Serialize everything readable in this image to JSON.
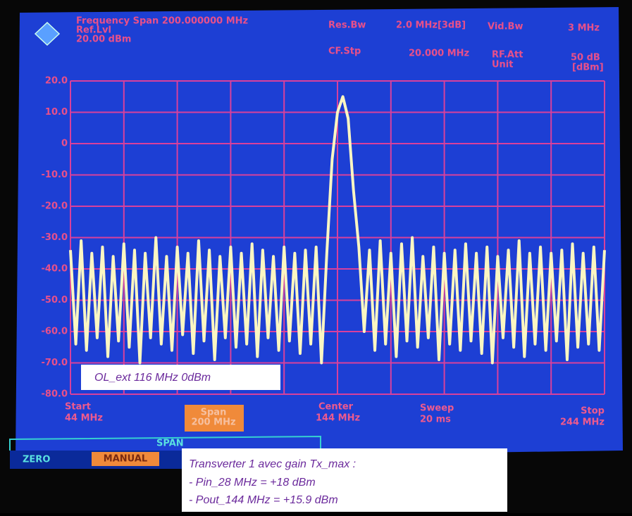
{
  "chart_data": {
    "type": "line",
    "title": "Frequency Span 200.000000 MHz",
    "screen": {
      "ref_lvl_label": "Ref.Lvl",
      "ref_lvl": "20.00 dBm",
      "res_bw_label": "Res.Bw",
      "res_bw": "2.0 MHz[3dB]",
      "vid_bw_label": "Vid.Bw",
      "vid_bw": "3 MHz",
      "cf_stp_label": "CF.Stp",
      "cf_stp": "20.000 MHz",
      "rf_att_label": "RF.Att",
      "rf_att": "50 dB",
      "unit_label": "Unit",
      "unit": "[dBm]",
      "start_label": "Start",
      "start": "44 MHz",
      "span_label": "Span",
      "span": "200 MHz",
      "center_label": "Center",
      "center": "144 MHz",
      "sweep_label": "Sweep",
      "sweep": "20 ms",
      "stop_label": "Stop",
      "stop": "244 MHz",
      "softkey_group": "SPAN",
      "softkey_zero": "ZERO",
      "softkey_manual": "MANUAL"
    },
    "annotations": {
      "ol_note": "OL_ext 116 MHz 0dBm",
      "transverter_title": "Transverter 1 avec gain Tx_max :",
      "pin": "- Pin_28 MHz = +18 dBm",
      "pout": "- Pout_144 MHz = +15.9 dBm"
    },
    "xlim": [
      44,
      244
    ],
    "xticks": [
      44,
      64,
      84,
      104,
      124,
      144,
      164,
      184,
      204,
      224,
      244
    ],
    "ylim": [
      -80,
      20
    ],
    "yticks": [
      {
        "value": 20,
        "label": "20.0"
      },
      {
        "value": 10,
        "label": "10.0"
      },
      0,
      {
        "value": -10,
        "label": "-10.0"
      },
      {
        "value": -20,
        "label": "-20.0"
      },
      {
        "value": -30,
        "label": "-30.0"
      },
      {
        "value": -40,
        "label": "-40.0"
      },
      {
        "value": -50,
        "label": "-50.0"
      },
      {
        "value": -60,
        "label": "-60.0"
      },
      {
        "value": -70,
        "label": "-70.0"
      },
      {
        "value": -80,
        "label": "-80.0"
      }
    ],
    "grid": true,
    "x": [
      44,
      46,
      48,
      50,
      52,
      54,
      56,
      58,
      60,
      62,
      64,
      66,
      68,
      70,
      72,
      74,
      76,
      78,
      80,
      82,
      84,
      86,
      88,
      90,
      92,
      94,
      96,
      98,
      100,
      102,
      104,
      106,
      108,
      110,
      112,
      114,
      116,
      118,
      120,
      122,
      124,
      126,
      128,
      130,
      132,
      134,
      136,
      138,
      140,
      142,
      144,
      146,
      148,
      150,
      152,
      154,
      156,
      158,
      160,
      162,
      164,
      166,
      168,
      170,
      172,
      174,
      176,
      178,
      180,
      182,
      184,
      186,
      188,
      190,
      192,
      194,
      196,
      198,
      200,
      202,
      204,
      206,
      208,
      210,
      212,
      214,
      216,
      218,
      220,
      222,
      224,
      226,
      228,
      230,
      232,
      234,
      236,
      238,
      240,
      242,
      244
    ],
    "series": [
      {
        "color": "#fbf6c2",
        "values": [
          -34,
          -64,
          -31,
          -66,
          -35,
          -62,
          -33,
          -68,
          -36,
          -63,
          -32,
          -65,
          -34,
          -70,
          -35,
          -62,
          -30,
          -64,
          -36,
          -66,
          -33,
          -61,
          -35,
          -67,
          -31,
          -63,
          -34,
          -69,
          -36,
          -62,
          -33,
          -65,
          -35,
          -64,
          -32,
          -68,
          -34,
          -62,
          -36,
          -66,
          -33,
          -63,
          -35,
          -67,
          -34,
          -64,
          -33,
          -70,
          -35,
          -5,
          10,
          15,
          8,
          -15,
          -33,
          -60,
          -34,
          -66,
          -31,
          -64,
          -35,
          -68,
          -32,
          -63,
          -30,
          -65,
          -36,
          -62,
          -33,
          -69,
          -35,
          -64,
          -34,
          -66,
          -32,
          -63,
          -35,
          -67,
          -33,
          -70,
          -36,
          -62,
          -34,
          -65,
          -31,
          -68,
          -35,
          -64,
          -33,
          -66,
          -35,
          -63,
          -34,
          -69,
          -32,
          -65,
          -35,
          -64,
          -33,
          -66,
          -34
        ]
      }
    ]
  }
}
